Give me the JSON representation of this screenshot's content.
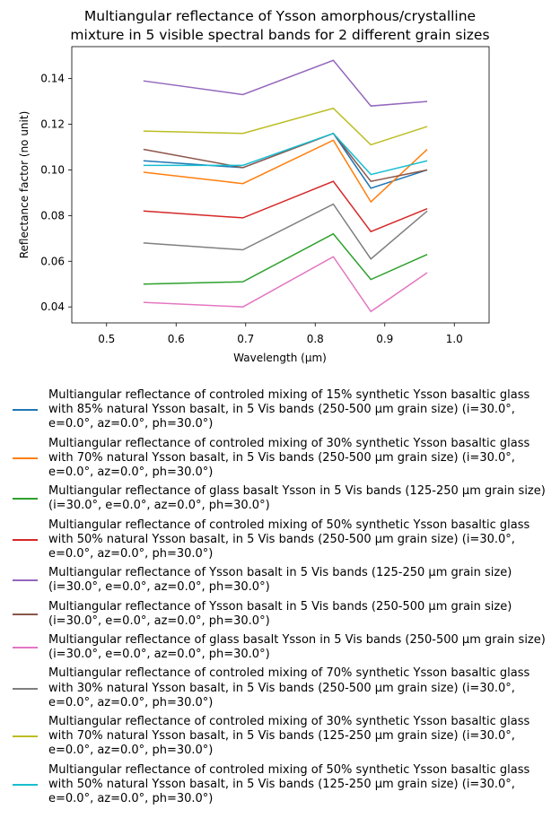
{
  "chart_data": {
    "type": "line",
    "title": "Multiangular reflectance of Ysson amorphous/crystalline mixture in 5 visible spectral bands for 2 different grain sizes",
    "xlabel": "Wavelength (μm)",
    "ylabel": "Reflectance factor (no unit)",
    "x": [
      0.553,
      0.696,
      0.826,
      0.88,
      0.961
    ],
    "xlim": [
      0.45,
      1.05
    ],
    "xticks": [
      0.5,
      0.6,
      0.7,
      0.8,
      0.9,
      {
        "value": 1,
        "label": "1.0"
      }
    ],
    "ylim": [
      0.033,
      0.154
    ],
    "yticks": [
      0.04,
      0.06,
      0.08,
      {
        "value": 0.1,
        "label": "0.10"
      },
      0.12,
      0.14
    ],
    "series": [
      {
        "name": "Multiangular reflectance of controled mixing of 15% synthetic Ysson basaltic glass with 85% natural Ysson basalt, in 5 Vis bands (250-500 µm grain size) (i=30.0°, e=0.0°, az=0.0°, ph=30.0°)",
        "color": "#1f77b4",
        "values": [
          0.104,
          0.101,
          0.116,
          0.092,
          0.1
        ]
      },
      {
        "name": "Multiangular reflectance of controled mixing of 30% synthetic Ysson basaltic glass with 70% natural Ysson basalt, in 5 Vis bands (250-500 µm grain size) (i=30.0°, e=0.0°, az=0.0°, ph=30.0°)",
        "color": "#ff7f0e",
        "values": [
          0.099,
          0.094,
          0.113,
          0.086,
          0.109
        ]
      },
      {
        "name": "Multiangular reflectance of glass basalt Ysson in 5 Vis bands (125-250 µm grain size) (i=30.0°, e=0.0°, az=0.0°, ph=30.0°)",
        "color": "#2ca02c",
        "values": [
          0.05,
          0.051,
          0.072,
          0.052,
          0.063
        ]
      },
      {
        "name": "Multiangular reflectance of controled mixing of 50% synthetic Ysson basaltic glass with 50% natural Ysson basalt, in 5 Vis bands (250-500 µm grain size) (i=30.0°, e=0.0°, az=0.0°, ph=30.0°)",
        "color": "#d62728",
        "values": [
          0.082,
          0.079,
          0.095,
          0.073,
          0.083
        ]
      },
      {
        "name": "Multiangular reflectance of Ysson basalt in 5 Vis bands (125-250 µm grain size) (i=30.0°, e=0.0°, az=0.0°, ph=30.0°)",
        "color": "#9467bd",
        "values": [
          0.139,
          0.133,
          0.148,
          0.128,
          0.13
        ]
      },
      {
        "name": "Multiangular reflectance of Ysson basalt in 5 Vis bands (250-500 µm grain size) (i=30.0°, e=0.0°, az=0.0°, ph=30.0°)",
        "color": "#8c564b",
        "values": [
          0.109,
          0.101,
          0.116,
          0.095,
          0.1
        ]
      },
      {
        "name": "Multiangular reflectance of glass basalt Ysson in 5 Vis bands (250-500 µm grain size) (i=30.0°, e=0.0°, az=0.0°, ph=30.0°)",
        "color": "#e377c2",
        "values": [
          0.042,
          0.04,
          0.062,
          0.038,
          0.055
        ]
      },
      {
        "name": "Multiangular reflectance of controled mixing of 70% synthetic Ysson basaltic glass with 30% natural Ysson basalt, in 5 Vis bands (250-500 µm grain size) (i=30.0°, e=0.0°, az=0.0°, ph=30.0°)",
        "color": "#7f7f7f",
        "values": [
          0.068,
          0.065,
          0.085,
          0.061,
          0.082
        ]
      },
      {
        "name": "Multiangular reflectance of controled mixing of 30% synthetic Ysson basaltic glass with 70% natural Ysson basalt, in 5 Vis bands (125-250 µm grain size) (i=30.0°, e=0.0°, az=0.0°, ph=30.0°)",
        "color": "#bcbd22",
        "values": [
          0.117,
          0.116,
          0.127,
          0.111,
          0.119
        ]
      },
      {
        "name": "Multiangular reflectance of controled mixing of 50% synthetic Ysson basaltic glass with 50% natural Ysson basalt, in 5 Vis bands (125-250 µm grain size) (i=30.0°, e=0.0°, az=0.0°, ph=30.0°)",
        "color": "#17becf",
        "values": [
          0.102,
          0.102,
          0.116,
          0.098,
          0.104
        ]
      }
    ]
  }
}
